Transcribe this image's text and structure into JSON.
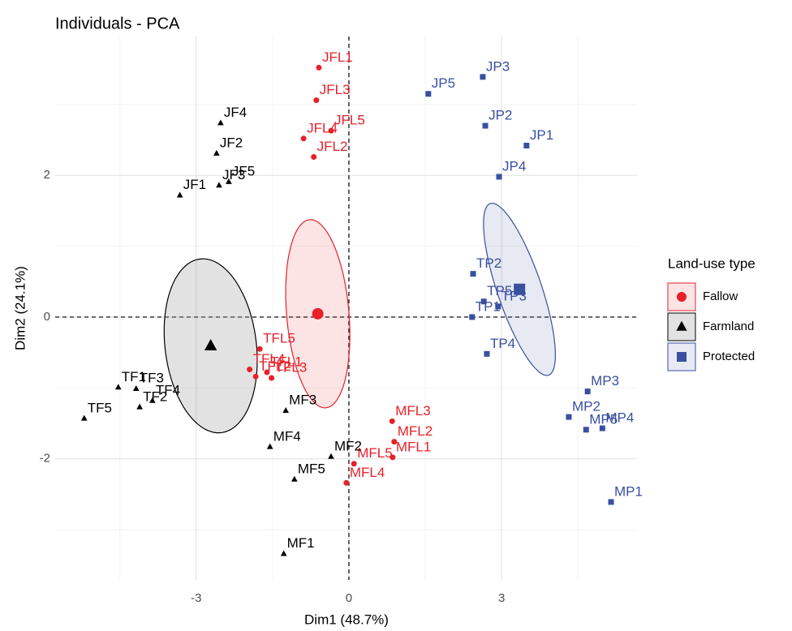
{
  "chart_data": {
    "type": "scatter",
    "title": "Individuals - PCA",
    "x_label": "Dim1 (48.7%)",
    "y_label": "Dim2 (24.1%)",
    "legend_title": "Land-use type",
    "xlim": [
      -5.77,
      5.66
    ],
    "ylim": [
      -3.71,
      3.96
    ],
    "xticks": [
      -3,
      0,
      3
    ],
    "yticks": [
      -2,
      0,
      2
    ],
    "grid": true,
    "series": [
      {
        "name": "Fallow",
        "color": "#e8202a",
        "shape": "circle",
        "labels": [
          "JFL1",
          "JFL3",
          "JFL5",
          "JFL4",
          "JFL2",
          "TFL5",
          "TFL4",
          "TFL1",
          "TFL2",
          "TFL3",
          "MFL3",
          "MFL2",
          "MFL1",
          "MFL5",
          "MFL4"
        ],
        "x": [
          -0.59,
          -0.64,
          -0.35,
          -0.89,
          -0.69,
          -1.75,
          -1.95,
          -1.61,
          -1.83,
          -1.52,
          0.85,
          0.89,
          0.86,
          0.1,
          -0.05
        ],
        "values": [
          3.52,
          3.06,
          2.63,
          2.52,
          2.26,
          -0.45,
          -0.74,
          -0.78,
          -0.84,
          -0.86,
          -1.47,
          -1.76,
          -1.98,
          -2.07,
          -2.34
        ]
      },
      {
        "name": "Farmland",
        "color": "#000000",
        "shape": "triangle",
        "labels": [
          "JF4",
          "JF2",
          "JF5",
          "JF3",
          "JF1",
          "TF1",
          "TF3",
          "TF4",
          "TF2",
          "TF5",
          "MF3",
          "MF2",
          "MF4",
          "MF5",
          "MF1"
        ],
        "x": [
          -2.52,
          -2.6,
          -2.36,
          -2.55,
          -3.32,
          -4.53,
          -4.18,
          -3.86,
          -4.11,
          -5.2,
          -1.24,
          -0.35,
          -1.55,
          -1.07,
          -1.28
        ],
        "values": [
          2.74,
          2.31,
          1.91,
          1.86,
          1.72,
          -0.99,
          -1.01,
          -1.18,
          -1.27,
          -1.43,
          -1.32,
          -1.97,
          -1.83,
          -2.29,
          -3.34
        ]
      },
      {
        "name": "Protected",
        "color": "#3a4fa0",
        "shape": "square",
        "labels": [
          "JP5",
          "JP3",
          "JP2",
          "JP1",
          "JP4",
          "TP2",
          "TP5",
          "TP1",
          "TP3",
          "TP4",
          "MP3",
          "MP2",
          "MP4",
          "MP5",
          "MP1"
        ],
        "x": [
          1.56,
          2.63,
          2.68,
          3.49,
          2.95,
          2.44,
          2.65,
          2.42,
          2.93,
          2.71,
          4.69,
          4.32,
          4.98,
          4.66,
          5.15
        ],
        "values": [
          3.15,
          3.39,
          2.7,
          2.42,
          1.98,
          0.61,
          0.22,
          0.0,
          0.15,
          -0.52,
          -1.05,
          -1.41,
          -1.57,
          -1.59,
          -2.61
        ]
      }
    ]
  }
}
